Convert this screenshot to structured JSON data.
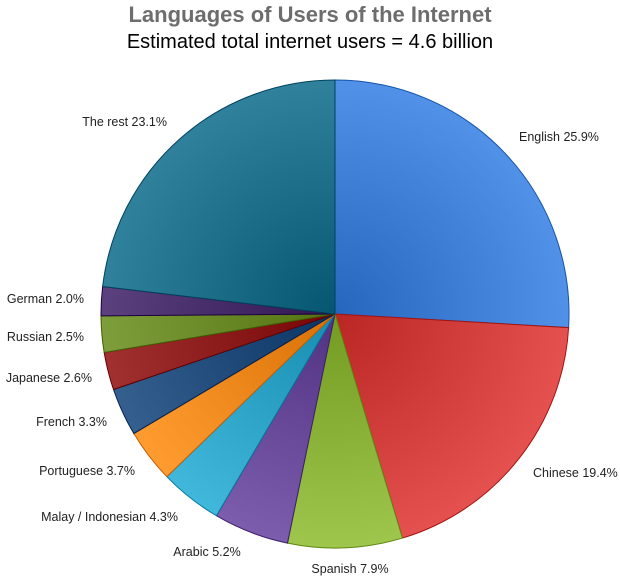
{
  "chart_data": {
    "type": "pie",
    "title": "Languages of Users of the Internet",
    "subtitle": "Estimated total internet users = 4.6 billion",
    "slices": [
      {
        "label": "English 25.9%",
        "value": 25.9,
        "color": "#3f7fd6"
      },
      {
        "label": "Chinese 19.4%",
        "value": 19.4,
        "color": "#d23f3c"
      },
      {
        "label": "Spanish 7.9%",
        "value": 7.9,
        "color": "#8cb43a"
      },
      {
        "label": "Arabic 5.2%",
        "value": 5.2,
        "color": "#6a4a9a"
      },
      {
        "label": "Malay / Indonesian 4.3%",
        "value": 4.3,
        "color": "#2fa6c9"
      },
      {
        "label": "Portuguese 3.7%",
        "value": 3.7,
        "color": "#f28a1e"
      },
      {
        "label": "French 3.3%",
        "value": 3.3,
        "color": "#234d7c"
      },
      {
        "label": "Japanese 2.6%",
        "value": 2.6,
        "color": "#8f1e1e"
      },
      {
        "label": "Russian 2.5%",
        "value": 2.5,
        "color": "#6c8c2a"
      },
      {
        "label": "German 2.0%",
        "value": 2.0,
        "color": "#4a2f6d"
      },
      {
        "label": "The rest 23.1%",
        "value": 23.1,
        "color": "#1e6f8a"
      }
    ]
  }
}
